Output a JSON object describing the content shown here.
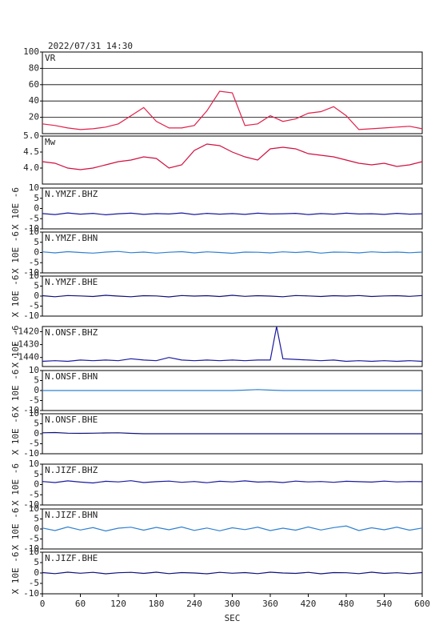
{
  "chart_data": [
    {
      "type": "line",
      "title": "2022/07/31 14:30",
      "xlim": [
        0,
        600
      ],
      "ylim": [
        0,
        100
      ],
      "yticks": [
        20,
        40,
        60,
        80,
        100
      ],
      "grid": true,
      "x": [
        0,
        20,
        40,
        60,
        80,
        100,
        120,
        140,
        160,
        180,
        200,
        220,
        240,
        260,
        280,
        300,
        320,
        340,
        360,
        380,
        400,
        420,
        440,
        460,
        480,
        500,
        520,
        540,
        560,
        580,
        600
      ],
      "series": [
        {
          "name": "VR",
          "color": "#e0204a",
          "values": [
            12,
            10,
            7,
            5,
            6,
            8,
            12,
            22,
            32,
            15,
            7,
            7,
            10,
            28,
            52,
            50,
            10,
            12,
            22,
            15,
            18,
            25,
            27,
            33,
            22,
            5,
            6,
            7,
            8,
            9,
            6
          ]
        }
      ]
    },
    {
      "type": "line",
      "xlim": [
        0,
        600
      ],
      "ylim": [
        3.5,
        5.0
      ],
      "yticks": [
        {
          "value": 4.0,
          "label": "4.0"
        },
        {
          "value": 4.5,
          "label": "4.5"
        },
        {
          "value": 5.0,
          "label": "5.0"
        }
      ],
      "grid": false,
      "x": [
        0,
        20,
        40,
        60,
        80,
        100,
        120,
        140,
        160,
        180,
        200,
        220,
        240,
        260,
        280,
        300,
        320,
        340,
        360,
        380,
        400,
        420,
        440,
        460,
        480,
        500,
        520,
        540,
        560,
        580,
        600
      ],
      "series": [
        {
          "name": "Mw",
          "color": "#d01040",
          "values": [
            4.2,
            4.15,
            4.0,
            3.95,
            4.0,
            4.1,
            4.2,
            4.25,
            4.35,
            4.3,
            4.0,
            4.1,
            4.55,
            4.75,
            4.7,
            4.5,
            4.35,
            4.25,
            4.6,
            4.65,
            4.6,
            4.45,
            4.4,
            4.35,
            4.25,
            4.15,
            4.1,
            4.15,
            4.05,
            4.1,
            4.2
          ]
        }
      ]
    },
    {
      "type": "line",
      "ylabel": "X 10E -6",
      "xlim": [
        0,
        600
      ],
      "ylim": [
        -10,
        10
      ],
      "yticks": [
        -10,
        -5,
        0,
        5,
        10
      ],
      "grid": false,
      "x": [
        0,
        20,
        40,
        60,
        80,
        100,
        120,
        140,
        160,
        180,
        200,
        220,
        240,
        260,
        280,
        300,
        320,
        340,
        360,
        380,
        400,
        420,
        440,
        460,
        480,
        500,
        520,
        540,
        560,
        580,
        600
      ],
      "series": [
        {
          "name": "N.YMZF.BHZ",
          "color": "#1a1aa0",
          "values": [
            -2.5,
            -3,
            -2.2,
            -2.8,
            -2.4,
            -3.1,
            -2.6,
            -2.3,
            -2.9,
            -2.5,
            -2.7,
            -2.2,
            -3,
            -2.4,
            -2.8,
            -2.5,
            -2.9,
            -2.3,
            -2.7,
            -2.6,
            -2.4,
            -3,
            -2.5,
            -2.8,
            -2.3,
            -2.7,
            -2.6,
            -2.9,
            -2.4,
            -2.8,
            -2.6
          ]
        }
      ]
    },
    {
      "type": "line",
      "ylabel": "X 10E -6",
      "xlim": [
        0,
        600
      ],
      "ylim": [
        -10,
        10
      ],
      "yticks": [
        -10,
        -5,
        0,
        5,
        10
      ],
      "grid": false,
      "x": [
        0,
        20,
        40,
        60,
        80,
        100,
        120,
        140,
        160,
        180,
        200,
        220,
        240,
        260,
        280,
        300,
        320,
        340,
        360,
        380,
        400,
        420,
        440,
        460,
        480,
        500,
        520,
        540,
        560,
        580,
        600
      ],
      "series": [
        {
          "name": "N.YMZF.BHN",
          "color": "#3080d0",
          "values": [
            0.3,
            -0.2,
            0.4,
            0,
            -0.3,
            0.2,
            0.5,
            -0.1,
            0.2,
            -0.3,
            0.1,
            0.4,
            -0.2,
            0.3,
            0,
            -0.4,
            0.2,
            0.1,
            -0.2,
            0.3,
            0,
            0.4,
            -0.3,
            0.2,
            0.1,
            -0.2,
            0.3,
            0,
            0.2,
            -0.1,
            0.2
          ]
        }
      ]
    },
    {
      "type": "line",
      "ylabel": "X 10E -6",
      "xlim": [
        0,
        600
      ],
      "ylim": [
        -10,
        10
      ],
      "yticks": [
        -10,
        -5,
        0,
        5,
        10
      ],
      "grid": false,
      "x": [
        0,
        20,
        40,
        60,
        80,
        100,
        120,
        140,
        160,
        180,
        200,
        220,
        240,
        260,
        280,
        300,
        320,
        340,
        360,
        380,
        400,
        420,
        440,
        460,
        480,
        500,
        520,
        540,
        560,
        580,
        600
      ],
      "series": [
        {
          "name": "N.YMZF.BHE",
          "color": "#10107a",
          "values": [
            0.2,
            -0.3,
            0.3,
            0.1,
            -0.2,
            0.4,
            0,
            -0.3,
            0.2,
            0.1,
            -0.4,
            0.3,
            0,
            0.2,
            -0.2,
            0.4,
            -0.1,
            0.2,
            0,
            -0.3,
            0.3,
            0.1,
            -0.2,
            0.2,
            0,
            0.3,
            -0.2,
            0.1,
            0.2,
            -0.1,
            0.3
          ]
        }
      ]
    },
    {
      "type": "line",
      "ylabel": "X 10E -6",
      "xlim": [
        0,
        600
      ],
      "ylim": [
        -1447,
        -1416
      ],
      "yticks": [
        -1440,
        -1430,
        -1420
      ],
      "grid": false,
      "x": [
        0,
        20,
        40,
        60,
        80,
        100,
        120,
        140,
        160,
        180,
        200,
        220,
        240,
        260,
        280,
        300,
        320,
        340,
        360,
        370,
        380,
        400,
        420,
        440,
        460,
        480,
        500,
        520,
        540,
        560,
        580,
        600
      ],
      "series": [
        {
          "name": "N.ONSF.BHZ",
          "color": "#1a1aa0",
          "values": [
            -1443,
            -1442.5,
            -1443,
            -1442,
            -1442.5,
            -1442,
            -1442.5,
            -1441,
            -1442,
            -1442.5,
            -1440,
            -1442,
            -1442.5,
            -1442,
            -1442.5,
            -1442,
            -1442.5,
            -1442,
            -1442,
            -1416,
            -1441,
            -1441.5,
            -1442,
            -1442.5,
            -1442,
            -1443,
            -1442.5,
            -1443,
            -1442.5,
            -1443,
            -1442.5,
            -1443
          ]
        }
      ]
    },
    {
      "type": "line",
      "ylabel": "X 10E -6",
      "xlim": [
        0,
        600
      ],
      "ylim": [
        -10,
        10
      ],
      "yticks": [
        -10,
        -5,
        0,
        5,
        10
      ],
      "grid": false,
      "x": [
        0,
        20,
        40,
        60,
        80,
        100,
        120,
        140,
        160,
        180,
        200,
        220,
        240,
        260,
        280,
        300,
        320,
        340,
        360,
        380,
        400,
        420,
        440,
        460,
        480,
        500,
        520,
        540,
        560,
        580,
        600
      ],
      "series": [
        {
          "name": "N.ONSF.BHN",
          "color": "#3080d0",
          "values": [
            0,
            0,
            0,
            0,
            0,
            0,
            0,
            0,
            0,
            0,
            0,
            0,
            0,
            0,
            0,
            0,
            0.2,
            0.5,
            0.2,
            0,
            0,
            0,
            0,
            0,
            0,
            0,
            0,
            0,
            0,
            0,
            0
          ]
        }
      ]
    },
    {
      "type": "line",
      "ylabel": "X 10E -6",
      "xlim": [
        0,
        600
      ],
      "ylim": [
        -10,
        10
      ],
      "yticks": [
        -10,
        -5,
        0,
        5,
        10
      ],
      "grid": false,
      "x": [
        0,
        20,
        40,
        60,
        80,
        100,
        120,
        140,
        160,
        180,
        200,
        220,
        240,
        260,
        280,
        300,
        320,
        340,
        360,
        380,
        400,
        420,
        440,
        460,
        480,
        500,
        520,
        540,
        560,
        580,
        600
      ],
      "series": [
        {
          "name": "N.ONSF.BHE",
          "color": "#10107a",
          "values": [
            0.5,
            0.6,
            0.3,
            0.2,
            0.3,
            0.4,
            0.5,
            0.2,
            0,
            0,
            0,
            0,
            0,
            0,
            0,
            0,
            0,
            0,
            0,
            0,
            0,
            0,
            0,
            0,
            0,
            0,
            0,
            0,
            0,
            0,
            0
          ]
        }
      ]
    },
    {
      "type": "line",
      "ylabel": "X 10E -6",
      "xlim": [
        0,
        600
      ],
      "ylim": [
        -10,
        10
      ],
      "yticks": [
        -10,
        -5,
        0,
        5,
        10
      ],
      "grid": false,
      "x": [
        0,
        20,
        40,
        60,
        80,
        100,
        120,
        140,
        160,
        180,
        200,
        220,
        240,
        260,
        280,
        300,
        320,
        340,
        360,
        380,
        400,
        420,
        440,
        460,
        480,
        500,
        520,
        540,
        560,
        580,
        600
      ],
      "series": [
        {
          "name": "N.JIZF.BHZ",
          "color": "#1a1aa0",
          "values": [
            1.5,
            1,
            1.8,
            1.2,
            0.8,
            1.6,
            1.3,
            1.9,
            1,
            1.4,
            1.7,
            1.1,
            1.5,
            0.9,
            1.6,
            1.3,
            1.8,
            1.2,
            1.4,
            1,
            1.7,
            1.3,
            1.5,
            1.1,
            1.6,
            1.4,
            1.2,
            1.7,
            1.3,
            1.5,
            1.4
          ]
        }
      ]
    },
    {
      "type": "line",
      "ylabel": "X 10E -6",
      "xlim": [
        0,
        600
      ],
      "ylim": [
        -10,
        10
      ],
      "yticks": [
        -10,
        -5,
        0,
        5,
        10
      ],
      "grid": false,
      "x": [
        0,
        20,
        40,
        60,
        80,
        100,
        120,
        140,
        160,
        180,
        200,
        220,
        240,
        260,
        280,
        300,
        320,
        340,
        360,
        380,
        400,
        420,
        440,
        460,
        480,
        500,
        520,
        540,
        560,
        580,
        600
      ],
      "series": [
        {
          "name": "N.JIZF.BHN",
          "color": "#3080d0",
          "values": [
            0.5,
            -0.8,
            1,
            -0.5,
            0.7,
            -1,
            0.4,
            0.9,
            -0.6,
            0.8,
            -0.4,
            1,
            -0.7,
            0.5,
            -0.9,
            0.6,
            -0.3,
            0.9,
            -0.8,
            0.4,
            -0.6,
            1,
            -0.5,
            0.7,
            1.5,
            -0.8,
            0.6,
            -0.4,
            0.9,
            -0.6,
            0.5
          ]
        }
      ]
    },
    {
      "type": "line",
      "ylabel": "X 10E -6",
      "xlim": [
        0,
        600
      ],
      "ylim": [
        -10,
        10
      ],
      "yticks": [
        -10,
        -5,
        0,
        5,
        10
      ],
      "grid": false,
      "xticks": [
        0,
        60,
        120,
        180,
        240,
        300,
        360,
        420,
        480,
        540,
        600
      ],
      "xlabel": "SEC",
      "x": [
        0,
        20,
        40,
        60,
        80,
        100,
        120,
        140,
        160,
        180,
        200,
        220,
        240,
        260,
        280,
        300,
        320,
        340,
        360,
        380,
        400,
        420,
        440,
        460,
        480,
        500,
        520,
        540,
        560,
        580,
        600
      ],
      "series": [
        {
          "name": "N.JIZF.BHE",
          "color": "#10107a",
          "values": [
            0.2,
            -0.3,
            0.4,
            -0.1,
            0.3,
            -0.4,
            0.1,
            0.3,
            -0.2,
            0.4,
            -0.3,
            0.2,
            0,
            -0.4,
            0.3,
            -0.1,
            0.2,
            -0.3,
            0.4,
            0,
            -0.2,
            0.3,
            -0.4,
            0.2,
            0.1,
            -0.3,
            0.4,
            -0.2,
            0.1,
            -0.3,
            0.2
          ]
        }
      ]
    }
  ]
}
